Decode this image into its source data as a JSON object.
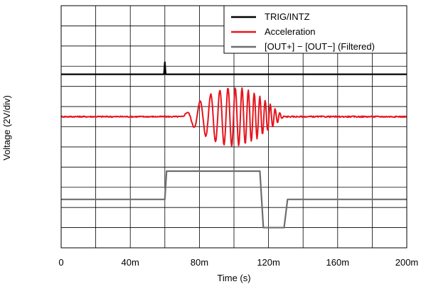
{
  "chart_data": {
    "type": "line",
    "xlabel": "Time (s)",
    "ylabel": "Voltage (2V/div)",
    "xlim": [
      0,
      0.2
    ],
    "ylim": [
      0,
      12
    ],
    "x_ticks": [
      0,
      0.04,
      0.08,
      0.12,
      0.16,
      0.2
    ],
    "x_tick_labels": [
      "0",
      "40m",
      "80m",
      "120m",
      "160m",
      "200m"
    ],
    "x_divisions": 10,
    "y_divisions": 12,
    "grid": true,
    "legend_position": "top-right",
    "series": [
      {
        "name": "TRIG/INTZ",
        "color": "#000000",
        "description_points": {
          "baseline_div": 8.6,
          "pulse_time": 0.06,
          "pulse_peak_div": 9.2
        },
        "x": [
          0,
          0.0595,
          0.06,
          0.0605,
          0.2
        ],
        "y": [
          8.6,
          8.6,
          9.2,
          8.6,
          8.6
        ]
      },
      {
        "name": "Acceleration",
        "color": "#e8141c",
        "x": [
          0,
          0.07,
          0.074,
          0.078,
          0.082,
          0.086,
          0.09,
          0.094,
          0.098,
          0.102,
          0.106,
          0.11,
          0.114,
          0.118,
          0.122,
          0.126,
          0.13,
          0.2
        ],
        "y": [
          6.5,
          6.5,
          6.65,
          6.2,
          7.2,
          5.5,
          7.6,
          5.3,
          7.7,
          5.1,
          7.9,
          4.9,
          7.9,
          5.5,
          7.0,
          6.1,
          6.5,
          6.5
        ]
      },
      {
        "name": "[OUT+] − [OUT−] (Filtered)",
        "color": "#6e6e6e",
        "x": [
          0,
          0.06,
          0.061,
          0.115,
          0.117,
          0.129,
          0.131,
          0.2
        ],
        "y": [
          2.4,
          2.4,
          3.8,
          3.8,
          1.0,
          1.0,
          2.4,
          2.4
        ]
      }
    ]
  }
}
